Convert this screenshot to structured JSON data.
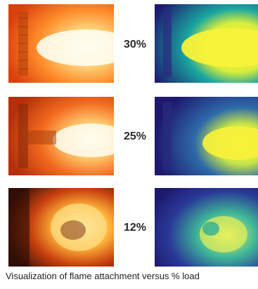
{
  "rows": [
    {
      "load": "30%"
    },
    {
      "load": "25%"
    },
    {
      "load": "12%"
    }
  ],
  "caption": "Visualization of flame attachment versus % load",
  "colors": {
    "visible_dark": "#8a1f08",
    "visible_mid": "#ff7a1a",
    "visible_bright": "#fff6c8",
    "thermal_dark": "#1d1a6e",
    "thermal_mid": "#1aa7a0",
    "thermal_bright": "#f7f23a"
  }
}
